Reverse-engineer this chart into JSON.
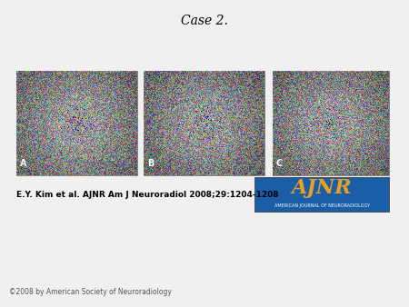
{
  "title": "Case 2.",
  "title_fontsize": 10,
  "bg_color": "#f0f0f0",
  "panel_labels": [
    "A",
    "B",
    "C"
  ],
  "citation": "E.Y. Kim et al. AJNR Am J Neuroradiol 2008;29:1204-1208",
  "citation_fontsize": 6.5,
  "copyright": "©2008 by American Society of Neuroradiology",
  "copyright_fontsize": 5.5,
  "ajnr_box_color": "#1a5ea8",
  "ajnr_text": "AJNR",
  "ajnr_subtext": "AMERICAN JOURNAL OF NEURORADIOLOGY",
  "ajnr_text_color": "#e8a020",
  "ajnr_subtext_color": "#ffffff",
  "image_panel_bg": [
    "#2a2a2a",
    "#1a1a1a",
    "#1e1e1e"
  ],
  "panel_border_color": "#888888"
}
